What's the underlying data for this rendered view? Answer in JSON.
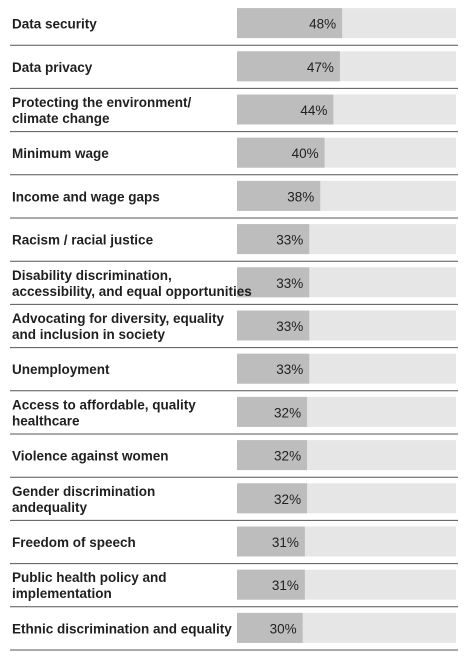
{
  "chart_data": {
    "type": "bar",
    "orientation": "horizontal",
    "xlim": [
      0,
      100
    ],
    "categories": [
      [
        "Data security"
      ],
      [
        "Data privacy"
      ],
      [
        "Protecting the environment/",
        "climate change"
      ],
      [
        "Minimum wage"
      ],
      [
        "Income and wage gaps"
      ],
      [
        "Racism / racial justice"
      ],
      [
        "Disability discrimination,",
        "accessibility, and equal opportunities"
      ],
      [
        "Advocating for diversity, equality",
        "and inclusion in society"
      ],
      [
        "Unemployment"
      ],
      [
        "Access to affordable, quality",
        "healthcare"
      ],
      [
        "Violence against women"
      ],
      [
        "Gender discrimination",
        "andequality"
      ],
      [
        "Freedom of speech"
      ],
      [
        "Public health policy and",
        "implementation"
      ],
      [
        "Ethnic discrimination and equality"
      ]
    ],
    "values": [
      48,
      47,
      44,
      40,
      38,
      33,
      33,
      33,
      33,
      32,
      32,
      32,
      31,
      31,
      30
    ],
    "value_labels": [
      "48%",
      "47%",
      "44%",
      "40%",
      "38%",
      "33%",
      "33%",
      "33%",
      "33%",
      "32%",
      "32%",
      "32%",
      "31%",
      "31%",
      "30%"
    ],
    "colors": {
      "bar": "#bdbdbd",
      "track": "#e6e6e6",
      "divider": "#555555",
      "text": "#1f1f1f"
    },
    "grid": false,
    "legend": "none"
  }
}
